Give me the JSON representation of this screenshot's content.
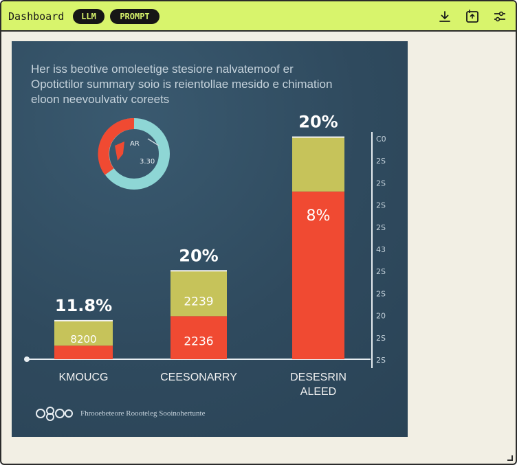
{
  "header": {
    "title": "Dashboard",
    "tags": [
      "LLM",
      "PROMPT"
    ],
    "accent_color": "#d8f46c",
    "buttons": [
      "download-icon",
      "share-icon",
      "settings-icon"
    ]
  },
  "image": {
    "headline": "Her iss beotive omoleetige stesiore nalvatemoof er\nOpotictilor summary soio is reientollae mesido e chimation\neloon neevoulvativ coreets",
    "donut_labels": [
      "AR",
      "3.30"
    ],
    "footer_text": "Fhrooebeteore Roooteleg Sooinohertunte",
    "chart_data": {
      "type": "bar",
      "categories": [
        "KMOUCG",
        "CEESONARRY",
        "DESESRIN ALEED"
      ],
      "series": [
        {
          "values": [
            6,
            19,
            74
          ],
          "color": "#f04a32"
        },
        {
          "values": [
            11,
            20,
            24
          ],
          "color": "#c6c35a"
        }
      ],
      "value_labels": [
        "11.8%",
        "20%",
        "20%"
      ],
      "inner_labels_top": [
        "8200",
        "2239",
        ""
      ],
      "inner_labels_bottom": [
        "",
        "2236",
        "8%"
      ],
      "y_tick_labels": [
        "C0",
        "2S",
        "2S",
        "2S",
        "2S",
        "43",
        "2S",
        "2S",
        "20",
        "2S",
        "2S"
      ],
      "ylim": [
        0,
        100
      ]
    }
  }
}
